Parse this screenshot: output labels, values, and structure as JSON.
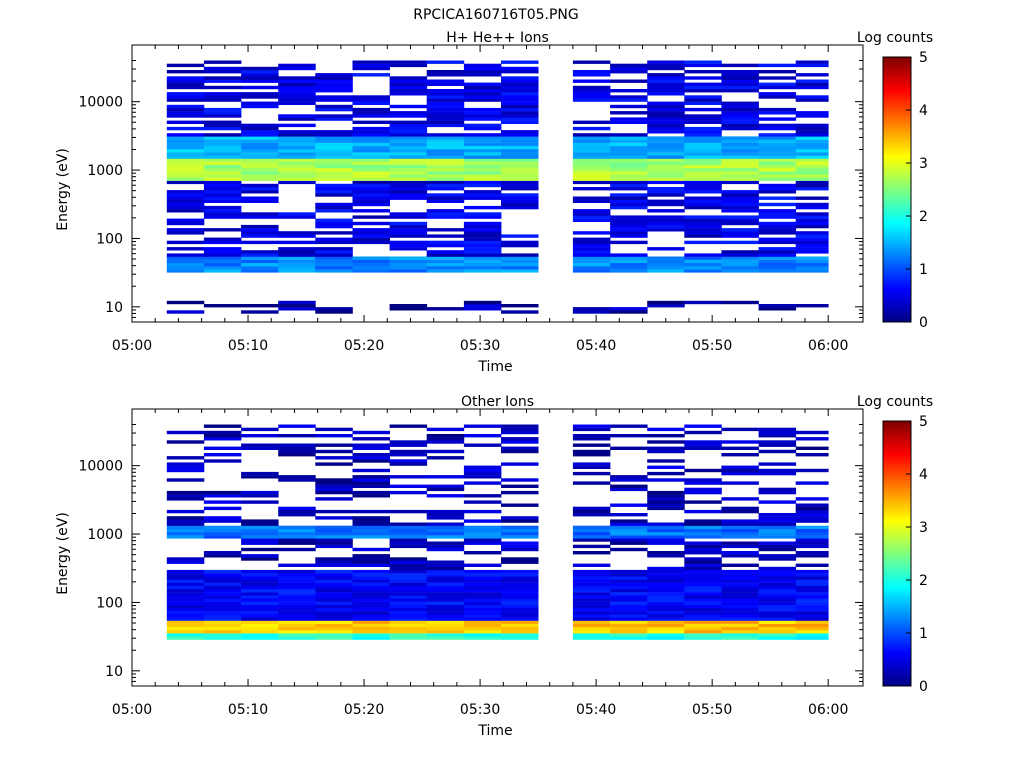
{
  "page_title": "RPCICA160716T05.PNG",
  "chart_data": [
    {
      "type": "heatmap",
      "title": "H+ He++ Ions",
      "xlabel": "Time",
      "ylabel": "Energy (eV)",
      "y_scale": "log",
      "xlim": [
        "05:00",
        "06:03"
      ],
      "ylim": [
        6,
        45000
      ],
      "x_ticks": [
        "05:00",
        "05:10",
        "05:20",
        "05:30",
        "05:40",
        "05:50",
        "06:00"
      ],
      "y_ticks": [
        "10",
        "100",
        "1000",
        "10000"
      ],
      "data_gap": [
        "05:35",
        "05:38"
      ],
      "colorbar": {
        "label": "Log counts",
        "min": 0,
        "max": 5,
        "ticks": [
          "0",
          "1",
          "2",
          "3",
          "4",
          "5"
        ],
        "colormap": "jet"
      },
      "energy_bands": [
        {
          "energy_range": [
            700,
            1500
          ],
          "log_counts": 2.7,
          "note": "peak ~1000 eV"
        },
        {
          "energy_range": [
            1500,
            3000
          ],
          "log_counts": 1.5
        },
        {
          "energy_range": [
            33,
            55
          ],
          "log_counts": 1.3
        },
        {
          "energy_range": [
            55,
            40000
          ],
          "log_counts": 0.5,
          "note": "speckled background"
        },
        {
          "energy_range": [
            8,
            12
          ],
          "log_counts": 0.2,
          "note": "sparse low-energy counts"
        }
      ]
    },
    {
      "type": "heatmap",
      "title": "Other Ions",
      "xlabel": "Time",
      "ylabel": "Energy (eV)",
      "y_scale": "log",
      "xlim": [
        "05:00",
        "06:03"
      ],
      "ylim": [
        6,
        45000
      ],
      "x_ticks": [
        "05:00",
        "05:10",
        "05:20",
        "05:30",
        "05:40",
        "05:50",
        "06:00"
      ],
      "y_ticks": [
        "10",
        "100",
        "1000",
        "10000"
      ],
      "data_gap": [
        "05:35",
        "05:38"
      ],
      "colorbar": {
        "label": "Log counts",
        "min": 0,
        "max": 5,
        "ticks": [
          "0",
          "1",
          "2",
          "3",
          "4",
          "5"
        ],
        "colormap": "jet"
      },
      "energy_bands": [
        {
          "energy_range": [
            35,
            55
          ],
          "log_counts": 3.4,
          "note": "peak ~45 eV"
        },
        {
          "energy_range": [
            30,
            35
          ],
          "log_counts": 2.0
        },
        {
          "energy_range": [
            900,
            1300
          ],
          "log_counts": 1.2
        },
        {
          "energy_range": [
            55,
            300
          ],
          "log_counts": 0.6
        },
        {
          "energy_range": [
            300,
            40000
          ],
          "log_counts": 0.3,
          "note": "sparse"
        }
      ]
    }
  ]
}
